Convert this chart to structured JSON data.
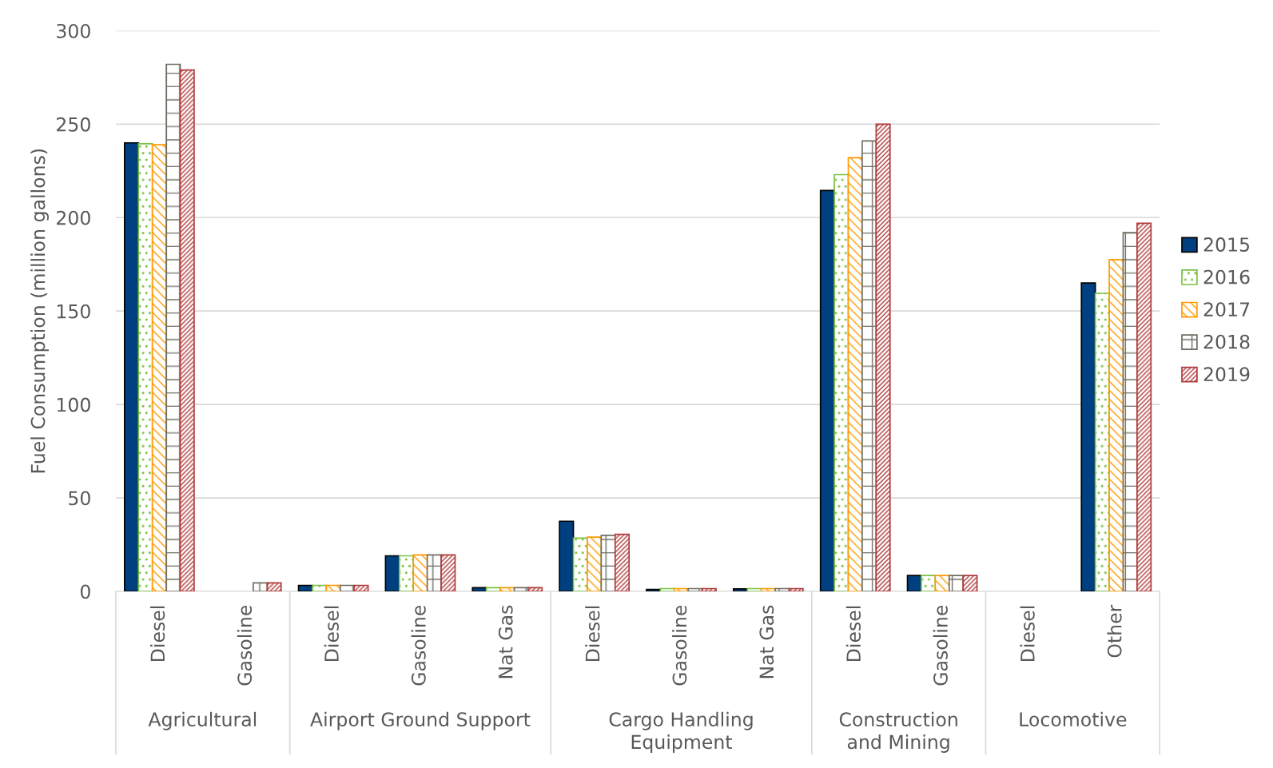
{
  "chart_data": {
    "type": "bar",
    "ylabel": "Fuel Consumption (million gallons)",
    "categories": [
      "Diesel",
      "Gasoline",
      "Diesel",
      "Gasoline",
      "Nat Gas",
      "Diesel",
      "Gasoline",
      "Nat Gas",
      "Diesel",
      "Gasoline",
      "Diesel",
      "Other"
    ],
    "annotations": [
      "Agricultural",
      "Airport Ground Support",
      "Cargo Handling\nEquipment",
      "Construction\nand Mining",
      "Locomotive"
    ],
    "series": [
      {
        "name": "2015",
        "color": "#004080",
        "values": [
          240,
          null,
          3.2,
          19,
          2,
          37.5,
          1,
          1.3,
          214.5,
          8.5,
          null,
          165
        ]
      },
      {
        "name": "2016",
        "color": "#7ac142",
        "values": [
          239.5,
          null,
          3.2,
          19,
          2,
          28.5,
          1.5,
          1.5,
          223,
          8.5,
          null,
          159.5
        ]
      },
      {
        "name": "2017",
        "color": "#ff9900",
        "values": [
          239,
          null,
          3.2,
          19.5,
          2,
          29,
          1.5,
          1.5,
          232,
          8.5,
          null,
          177.5
        ]
      },
      {
        "name": "2018",
        "color": "#6e6e62",
        "values": [
          282,
          4.5,
          3.2,
          19.5,
          2,
          30,
          1.5,
          1.5,
          241,
          8.5,
          null,
          192
        ]
      },
      {
        "name": "2019",
        "color": "#b03a3a",
        "values": [
          279,
          4.5,
          3.2,
          19.5,
          2,
          30.5,
          1.5,
          1.5,
          250,
          8.5,
          null,
          197
        ]
      }
    ],
    "ylim": [
      0,
      300
    ],
    "yticks": [
      0,
      50,
      100,
      150,
      200,
      250,
      300
    ],
    "grid": "y",
    "legend": "right"
  }
}
